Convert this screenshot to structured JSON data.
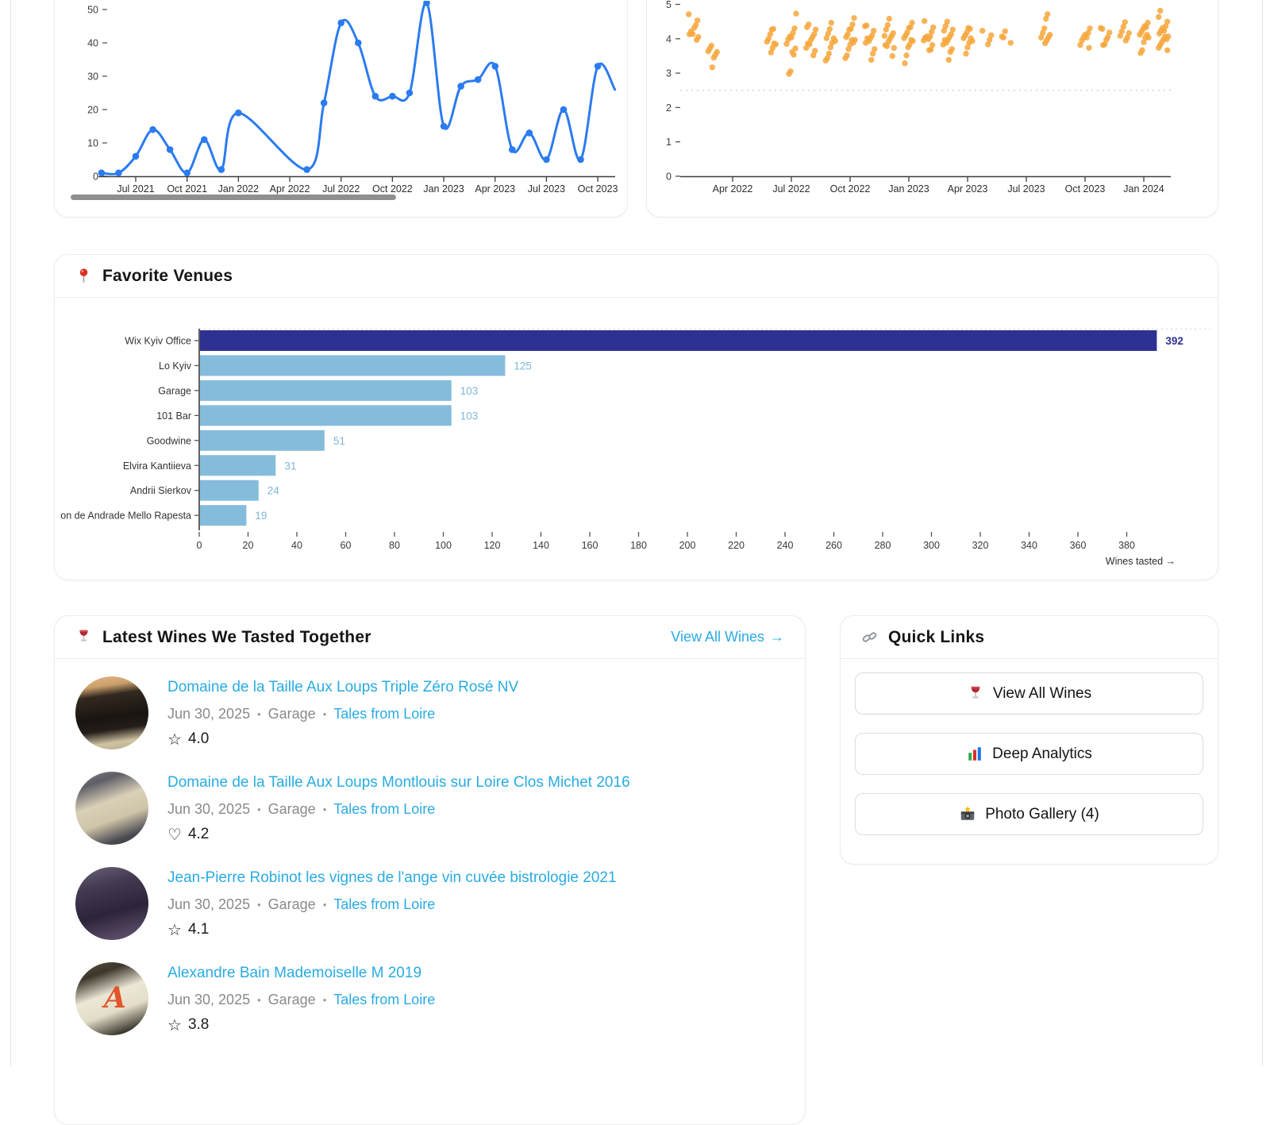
{
  "chart_data": [
    {
      "id": "tastings_per_month",
      "type": "line",
      "color": "#2b7bf0",
      "x": [
        "2021-05",
        "2021-06",
        "2021-07",
        "2021-08",
        "2021-09",
        "2021-10",
        "2021-11",
        "2021-12",
        "2022-01",
        "2022-05",
        "2022-06",
        "2022-07",
        "2022-08",
        "2022-09",
        "2022-10",
        "2022-11",
        "2022-12",
        "2023-01",
        "2023-02",
        "2023-03",
        "2023-04",
        "2023-05",
        "2023-06",
        "2023-07",
        "2023-08",
        "2023-09",
        "2023-10",
        "2023-11"
      ],
      "y": [
        1,
        1,
        6,
        14,
        8,
        1,
        11,
        2,
        19,
        2,
        22,
        46,
        40,
        24,
        24,
        25,
        52,
        15,
        27,
        29,
        33,
        8,
        13,
        5,
        20,
        5,
        33,
        26
      ],
      "x_tick_labels": [
        "Jul 2021",
        "Oct 2021",
        "Jan 2022",
        "Apr 2022",
        "Jul 2022",
        "Oct 2022",
        "Jan 2023",
        "Apr 2023",
        "Jul 2023",
        "Oct 2023"
      ],
      "y_ticks": [
        0,
        10,
        20,
        30,
        40,
        50
      ],
      "ylim": [
        0,
        52
      ],
      "has_scrollbar": true
    },
    {
      "id": "wine_ratings_over_time",
      "type": "scatter",
      "color": "#f6a63a",
      "x_tick_labels": [
        "Apr 2022",
        "Jul 2022",
        "Oct 2022",
        "Jan 2023",
        "Apr 2023",
        "Jul 2023",
        "Oct 2023",
        "Jan 2024"
      ],
      "y_ticks": [
        0,
        1,
        2,
        3,
        4,
        5
      ],
      "ylim": [
        0,
        5
      ],
      "dashed_line_y": 2.5,
      "columns": [
        {
          "month": "2022-02",
          "ratings": [
            4.65,
            4.5,
            4.4,
            4.35,
            4.2,
            4.15,
            4.1,
            4.05,
            4.0
          ]
        },
        {
          "month": "2022-03",
          "ratings": [
            3.8,
            3.75,
            3.7,
            3.55,
            3.5,
            3.45,
            3.2
          ]
        },
        {
          "month": "2022-06",
          "ratings": [
            4.35,
            4.2,
            4.1,
            4.0,
            3.95,
            3.9,
            3.8,
            3.7,
            3.6
          ]
        },
        {
          "month": "2022-07",
          "ratings": [
            4.7,
            4.3,
            4.2,
            4.1,
            4.0,
            3.95,
            3.85,
            3.75,
            3.6,
            3.55,
            3.02,
            2.98
          ]
        },
        {
          "month": "2022-08",
          "ratings": [
            4.45,
            4.4,
            4.2,
            4.1,
            4.05,
            4.0,
            3.9,
            3.8,
            3.7,
            3.65,
            3.55
          ]
        },
        {
          "month": "2022-09",
          "ratings": [
            4.4,
            4.25,
            4.15,
            4.05,
            4.0,
            3.95,
            3.85,
            3.75,
            3.6,
            3.5,
            3.3
          ]
        },
        {
          "month": "2022-10",
          "ratings": [
            4.6,
            4.45,
            4.35,
            4.2,
            4.1,
            4.05,
            4.0,
            3.95,
            3.9,
            3.8,
            3.7,
            3.55,
            3.5
          ]
        },
        {
          "month": "2022-11",
          "ratings": [
            4.45,
            4.3,
            4.2,
            4.1,
            4.05,
            4.0,
            3.95,
            3.85,
            3.7,
            3.6,
            3.45
          ]
        },
        {
          "month": "2022-12",
          "ratings": [
            4.55,
            4.4,
            4.3,
            4.15,
            4.1,
            4.05,
            4.0,
            3.95,
            3.85,
            3.75,
            3.7,
            3.5
          ]
        },
        {
          "month": "2023-01",
          "ratings": [
            4.5,
            4.4,
            4.25,
            4.15,
            4.1,
            4.05,
            4.0,
            3.9,
            3.8,
            3.75,
            3.55,
            3.35
          ]
        },
        {
          "month": "2023-02",
          "ratings": [
            4.45,
            4.3,
            4.2,
            4.1,
            4.05,
            4.0,
            4.0,
            3.95,
            3.85,
            3.75,
            3.6
          ]
        },
        {
          "month": "2023-03",
          "ratings": [
            4.5,
            4.4,
            4.3,
            4.2,
            4.1,
            4.05,
            4.0,
            3.95,
            3.9,
            3.8,
            3.7,
            3.65,
            3.45
          ]
        },
        {
          "month": "2023-04",
          "ratings": [
            4.35,
            4.25,
            4.15,
            4.1,
            4.05,
            4.0,
            3.95,
            3.85,
            3.75,
            3.6
          ]
        },
        {
          "month": "2023-05",
          "ratings": [
            4.2,
            4.1,
            4.0,
            3.9
          ]
        },
        {
          "month": "2023-06",
          "ratings": [
            4.25,
            4.1,
            4.0,
            3.85
          ]
        },
        {
          "month": "2023-08",
          "ratings": [
            4.65,
            4.55,
            4.3,
            4.2,
            4.1,
            4.05,
            4.0,
            3.95,
            3.9
          ]
        },
        {
          "month": "2023-10",
          "ratings": [
            4.3,
            4.2,
            4.1,
            4.05,
            4.0,
            3.95,
            3.85,
            3.8
          ]
        },
        {
          "month": "2023-11",
          "ratings": [
            4.35,
            4.25,
            4.15,
            4.05,
            4.0,
            3.9,
            3.75
          ]
        },
        {
          "month": "2023-12",
          "ratings": [
            4.45,
            4.35,
            4.25,
            4.15,
            4.1,
            4.0,
            3.95
          ]
        },
        {
          "month": "2024-01",
          "ratings": [
            4.5,
            4.4,
            4.3,
            4.25,
            4.2,
            4.15,
            4.1,
            4.05,
            4.0,
            3.9,
            3.7,
            3.65
          ]
        },
        {
          "month": "2024-02",
          "ratings": [
            4.75,
            4.6,
            4.5,
            4.4,
            4.3,
            4.25,
            4.2,
            4.15,
            4.1,
            4.05,
            4.0,
            3.95,
            3.9,
            3.85,
            3.8,
            3.6
          ]
        }
      ]
    },
    {
      "id": "favorite_venues",
      "type": "bar",
      "orientation": "horizontal",
      "categories": [
        "Wix Kyiv Office",
        "Lo Kyiv",
        "Garage",
        "101 Bar",
        "Goodwine",
        "Elvira Kantiieva",
        "Andrii Sierkov",
        "on de Andrade Mello Rapesta"
      ],
      "values": [
        392,
        125,
        103,
        103,
        51,
        31,
        24,
        19
      ],
      "xlabel": "Wines tasted →",
      "x_ticks": {
        "min": 0,
        "max": 380,
        "step": 20
      },
      "first_bar_color": "#2E3192",
      "bar_color": "#85BCDC",
      "value_label_color": "#7FB7DA"
    }
  ],
  "favorite_venues": {
    "icon": "round-pushpin-icon",
    "title": "Favorite Venues"
  },
  "latest_wines": {
    "icon": "wine-glass-icon",
    "title": "Latest Wines We Tasted Together",
    "view_all": {
      "label": "View All Wines",
      "arrow": "→"
    },
    "separator": "•",
    "items": [
      {
        "title": "Domaine de la Taille Aux Loups Triple Zéro Rosé NV",
        "date": "Jun 30, 2025",
        "venue": "Garage",
        "tag": "Tales from Loire",
        "rating": "4.0",
        "rating_icon": "star",
        "thumb": "bottle-dark-label"
      },
      {
        "title": "Domaine de la Taille Aux Loups Montlouis sur Loire Clos Michet 2016",
        "date": "Jun 30, 2025",
        "venue": "Garage",
        "tag": "Tales from Loire",
        "rating": "4.2",
        "rating_icon": "heart",
        "thumb": "bottle-cream-label"
      },
      {
        "title": "Jean-Pierre Robinot les vignes de l'ange vin cuvée bistrologie 2021",
        "date": "Jun 30, 2025",
        "venue": "Garage",
        "tag": "Tales from Loire",
        "rating": "4.1",
        "rating_icon": "star",
        "thumb": "bottle-purple"
      },
      {
        "title": "Alexandre Bain Mademoiselle M 2019",
        "date": "Jun 30, 2025",
        "venue": "Garage",
        "tag": "Tales from Loire",
        "rating": "3.8",
        "rating_icon": "star",
        "thumb": "bottle-letter-a"
      }
    ]
  },
  "quick_links": {
    "icon": "link-icon",
    "title": "Quick Links",
    "buttons": [
      {
        "icon": "wine-glass-icon",
        "label": "View All Wines"
      },
      {
        "icon": "bar-chart-icon",
        "label": "Deep Analytics"
      },
      {
        "icon": "camera-flash-icon",
        "label": "Photo Gallery (4)"
      }
    ]
  },
  "colors": {
    "accent_link": "#29abe2",
    "line_series": "#2b7bf0",
    "scatter_series": "#f6a63a",
    "bar_primary": "#2E3192",
    "bar_secondary": "#85BCDC",
    "axis_text": "#3c3c3c",
    "muted_text": "#8a8a8a"
  }
}
